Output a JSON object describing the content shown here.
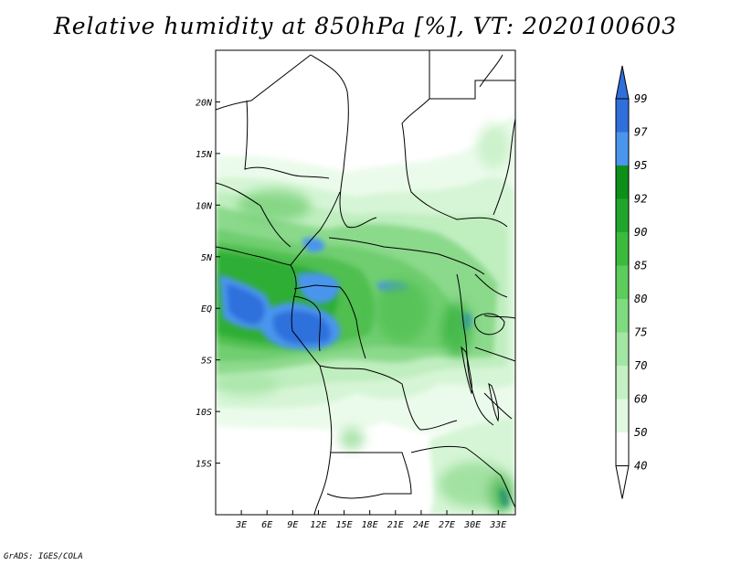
{
  "title": "Relative humidity at 850hPa [%], VT: 2020100603",
  "credit": "GrADS: IGES/COLA",
  "map": {
    "lon_range": [
      0,
      35
    ],
    "lat_range": [
      -20,
      25
    ],
    "lon_ticks": [
      {
        "value": 3,
        "label": "3E"
      },
      {
        "value": 6,
        "label": "6E"
      },
      {
        "value": 9,
        "label": "9E"
      },
      {
        "value": 12,
        "label": "12E"
      },
      {
        "value": 15,
        "label": "15E"
      },
      {
        "value": 18,
        "label": "18E"
      },
      {
        "value": 21,
        "label": "21E"
      },
      {
        "value": 24,
        "label": "24E"
      },
      {
        "value": 27,
        "label": "27E"
      },
      {
        "value": 30,
        "label": "30E"
      },
      {
        "value": 33,
        "label": "33E"
      }
    ],
    "lat_ticks": [
      {
        "value": 20,
        "label": "20N"
      },
      {
        "value": 15,
        "label": "15N"
      },
      {
        "value": 10,
        "label": "10N"
      },
      {
        "value": 5,
        "label": "5N"
      },
      {
        "value": 0,
        "label": "EQ"
      },
      {
        "value": -5,
        "label": "5S"
      },
      {
        "value": -10,
        "label": "10S"
      },
      {
        "value": -15,
        "label": "15S"
      }
    ]
  },
  "colorbar": {
    "levels": [
      "99",
      "97",
      "95",
      "92",
      "90",
      "85",
      "80",
      "75",
      "70",
      "60",
      "50",
      "40"
    ],
    "colors": [
      "#2f6fdc",
      "#2f6fdc",
      "#4a95ee",
      "#0e8f1a",
      "#21a62c",
      "#3cba3c",
      "#5ccc5c",
      "#7fdb7f",
      "#a3e6a3",
      "#c4f0c4",
      "#e0f8e0",
      "#ffffff"
    ],
    "top_color": "#2f6fdc"
  },
  "colors": {
    "c40": "#ebfbeb",
    "c50": "#d6f5d6",
    "c60": "#bfeebf",
    "c70": "#a6e4a6",
    "c75": "#8bd98b",
    "c80": "#6fce6f",
    "c85": "#4fbf4f",
    "c90": "#2fae34",
    "c92": "#16961d",
    "c95": "#4a95ee",
    "c97": "#2f6fdc"
  }
}
